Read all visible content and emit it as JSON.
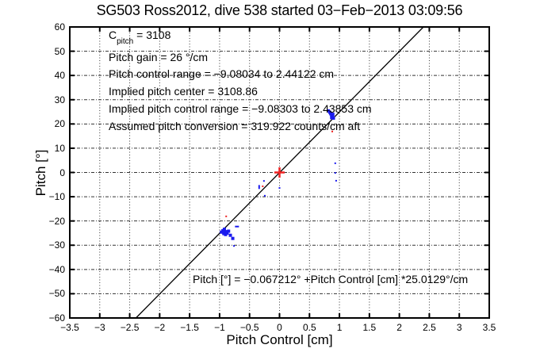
{
  "chart_data": {
    "type": "scatter",
    "title": "SG503 Ross2012, dive 538 started 03−Feb−2013 03:09:56",
    "xlabel": "Pitch Control [cm]",
    "ylabel": "Pitch [°]",
    "xlim": [
      -3.5,
      3.5
    ],
    "ylim": [
      -60,
      60
    ],
    "xticks": [
      -3.5,
      -3,
      -2.5,
      -2,
      -1.5,
      -1,
      -0.5,
      0,
      0.5,
      1,
      1.5,
      2,
      2.5,
      3,
      3.5
    ],
    "yticks": [
      -60,
      -50,
      -40,
      -30,
      -20,
      -10,
      0,
      10,
      20,
      30,
      40,
      50,
      60
    ],
    "grid": true,
    "legend": "none",
    "colors": {
      "data_blue": "#1a1aee",
      "marker_red": "#ee2222",
      "fit_line": "#000000",
      "grid": "#333333",
      "axis": "#000000"
    },
    "fit_line": {
      "slope": 25.0129,
      "intercept": -0.067212
    },
    "cpitch": {
      "symbol": "C",
      "subscript": "pitch",
      "value": " = 3108"
    },
    "annotations": [
      "Pitch gain = 26 °/cm",
      "Pitch control range = −9.08034 to 2.44122 cm",
      "Implied pitch center = 3108.86",
      "Implied pitch control range = −9.08303 to 2.43853 cm",
      "Assumed pitch conversion = 319.922 counts/cm aft"
    ],
    "equation": "Pitch [°] = −0.067212° +Pitch Control [cm] *25.0129°/cm",
    "series": [
      {
        "name": "pitch-upper-cluster",
        "color": "#1a1aee",
        "marker": "square",
        "size": 4,
        "points": [
          [
            0.815,
            25.4
          ],
          [
            0.84,
            24.8
          ],
          [
            0.855,
            24.2
          ],
          [
            0.87,
            23.6
          ],
          [
            0.885,
            23.0
          ],
          [
            0.9,
            22.4
          ],
          [
            0.87,
            22.6
          ],
          [
            0.89,
            24.0
          ]
        ]
      },
      {
        "name": "pitch-lower-cluster",
        "color": "#1a1aee",
        "marker": "square",
        "size": 4,
        "points": [
          [
            -0.97,
            -24.6
          ],
          [
            -0.945,
            -24.0
          ],
          [
            -0.92,
            -23.4
          ],
          [
            -0.9,
            -24.4
          ],
          [
            -0.875,
            -25.0
          ],
          [
            -0.85,
            -24.2
          ],
          [
            -0.9,
            -25.6
          ],
          [
            -0.93,
            -25.2
          ],
          [
            -0.82,
            -25.9
          ],
          [
            -0.78,
            -27.2
          ]
        ]
      },
      {
        "name": "pitch-small-dots",
        "color": "#1a1aee",
        "marker": "dot",
        "size": 2,
        "points": [
          [
            0.93,
            3.8
          ],
          [
            0.93,
            -0.2
          ],
          [
            0.945,
            -3.4
          ],
          [
            -0.26,
            -3.5
          ],
          [
            0.0,
            -6.4
          ],
          [
            -0.245,
            -9.6
          ],
          [
            -0.76,
            -30.3
          ]
        ]
      },
      {
        "name": "pitch-vdash-mark",
        "color": "#1a1aee",
        "marker": "vdash",
        "size": 5,
        "points": [
          [
            -0.34,
            -6.0
          ]
        ]
      },
      {
        "name": "pitch-hdash-mark",
        "color": "#1a1aee",
        "marker": "hdash",
        "size": 5,
        "points": [
          [
            -0.71,
            -22.3
          ]
        ]
      },
      {
        "name": "flagged-red-dots",
        "color": "#ee2222",
        "marker": "dot",
        "size": 2,
        "points": [
          [
            0.88,
            16.9
          ],
          [
            -0.89,
            -18.1
          ],
          [
            -0.28,
            -5.7
          ]
        ]
      },
      {
        "name": "origin-plus-marker",
        "color": "#ee2222",
        "marker": "plus",
        "size": 6.5,
        "points": [
          [
            0,
            0
          ]
        ]
      }
    ]
  }
}
